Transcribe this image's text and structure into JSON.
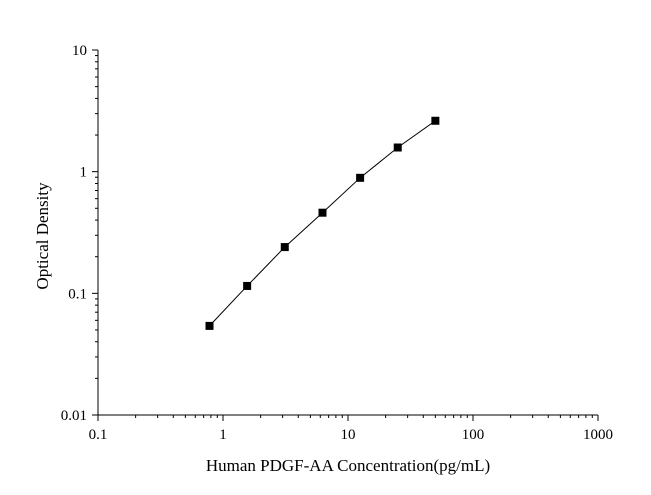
{
  "chart_data": {
    "type": "scatter",
    "title": "",
    "xlabel": "Human PDGF-AA Concentration(pg/mL)",
    "ylabel": "Optical Density",
    "x_scale": "log",
    "y_scale": "log",
    "xlim": [
      0.1,
      1000
    ],
    "ylim": [
      0.01,
      10
    ],
    "x_ticks": [
      0.1,
      1,
      10,
      100,
      1000
    ],
    "x_tick_labels": [
      "0.1",
      "1",
      "10",
      "100",
      "1000"
    ],
    "y_ticks": [
      0.01,
      0.1,
      1,
      10
    ],
    "y_tick_labels": [
      "0.01",
      "0.1",
      "1",
      "10"
    ],
    "grid": false,
    "legend": "none",
    "series": [
      {
        "marker": "square",
        "line": true,
        "color": "#000000",
        "x": [
          0.78,
          1.56,
          3.12,
          6.25,
          12.5,
          25,
          50
        ],
        "y": [
          0.054,
          0.115,
          0.24,
          0.46,
          0.89,
          1.58,
          2.62
        ]
      }
    ]
  }
}
